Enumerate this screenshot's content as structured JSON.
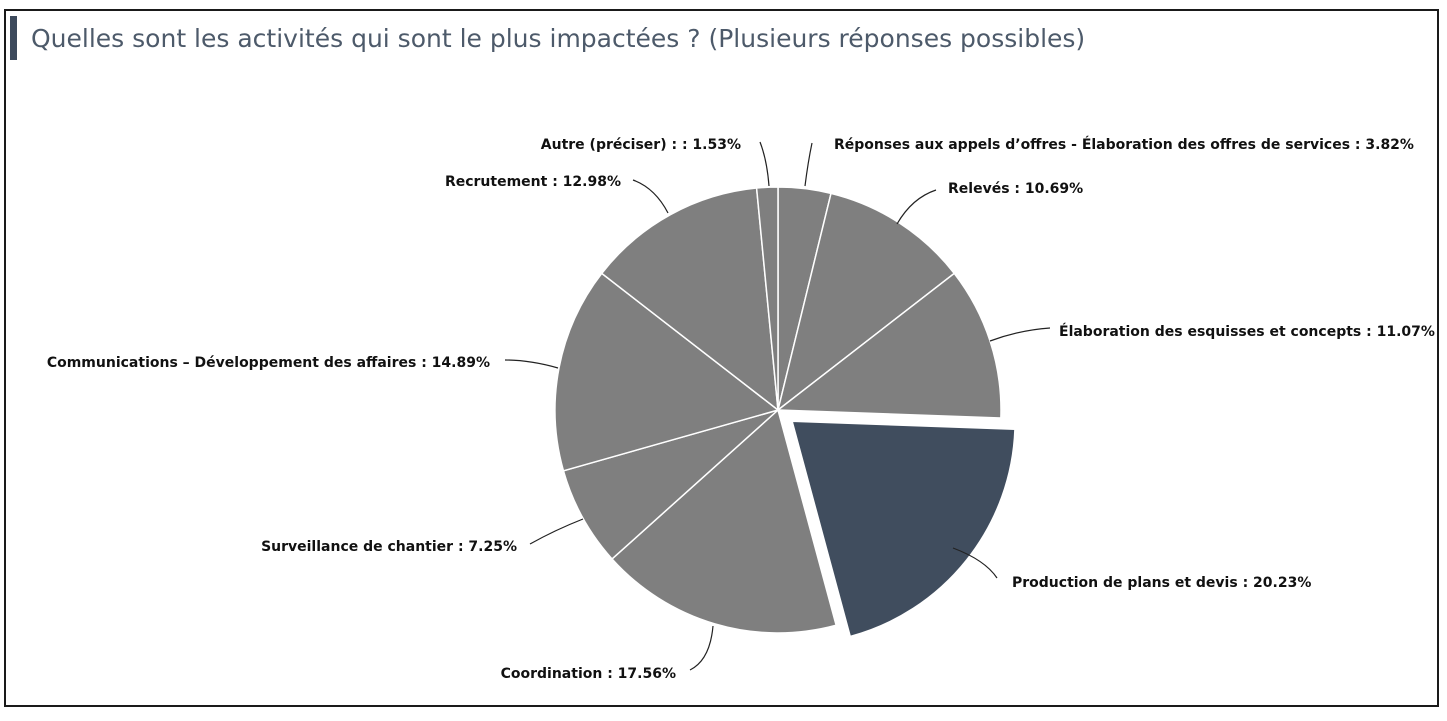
{
  "chart_data": {
    "type": "pie",
    "title": "Quelles sont les activités qui sont le plus impactées ? (Plusieurs réponses possibles)",
    "slices": [
      {
        "label": "Réponses aux appels d’offres - Élaboration des offres de services : 3.82%",
        "value": 3.82,
        "color": "#7f7f7f",
        "exploded": false
      },
      {
        "label": "Relevés : 10.69%",
        "value": 10.69,
        "color": "#7f7f7f",
        "exploded": false
      },
      {
        "label": "Élaboration des esquisses et concepts : 11.07%",
        "value": 11.07,
        "color": "#7f7f7f",
        "exploded": false
      },
      {
        "label": "Production de plans et devis : 20.23%",
        "value": 20.23,
        "color": "#404d5e",
        "exploded": true
      },
      {
        "label": "Coordination  : 17.56%",
        "value": 17.56,
        "color": "#7f7f7f",
        "exploded": false
      },
      {
        "label": "Surveillance de chantier : 7.25%",
        "value": 7.25,
        "color": "#7f7f7f",
        "exploded": false
      },
      {
        "label": "Communications – Développement des affaires  : 14.89%",
        "value": 14.89,
        "color": "#7f7f7f",
        "exploded": false
      },
      {
        "label": "Recrutement : 12.98%",
        "value": 12.98,
        "color": "#7f7f7f",
        "exploded": false
      },
      {
        "label": "Autre (préciser) : : 1.53%",
        "value": 1.53,
        "color": "#7f7f7f",
        "exploded": false
      }
    ],
    "legend": "none"
  }
}
